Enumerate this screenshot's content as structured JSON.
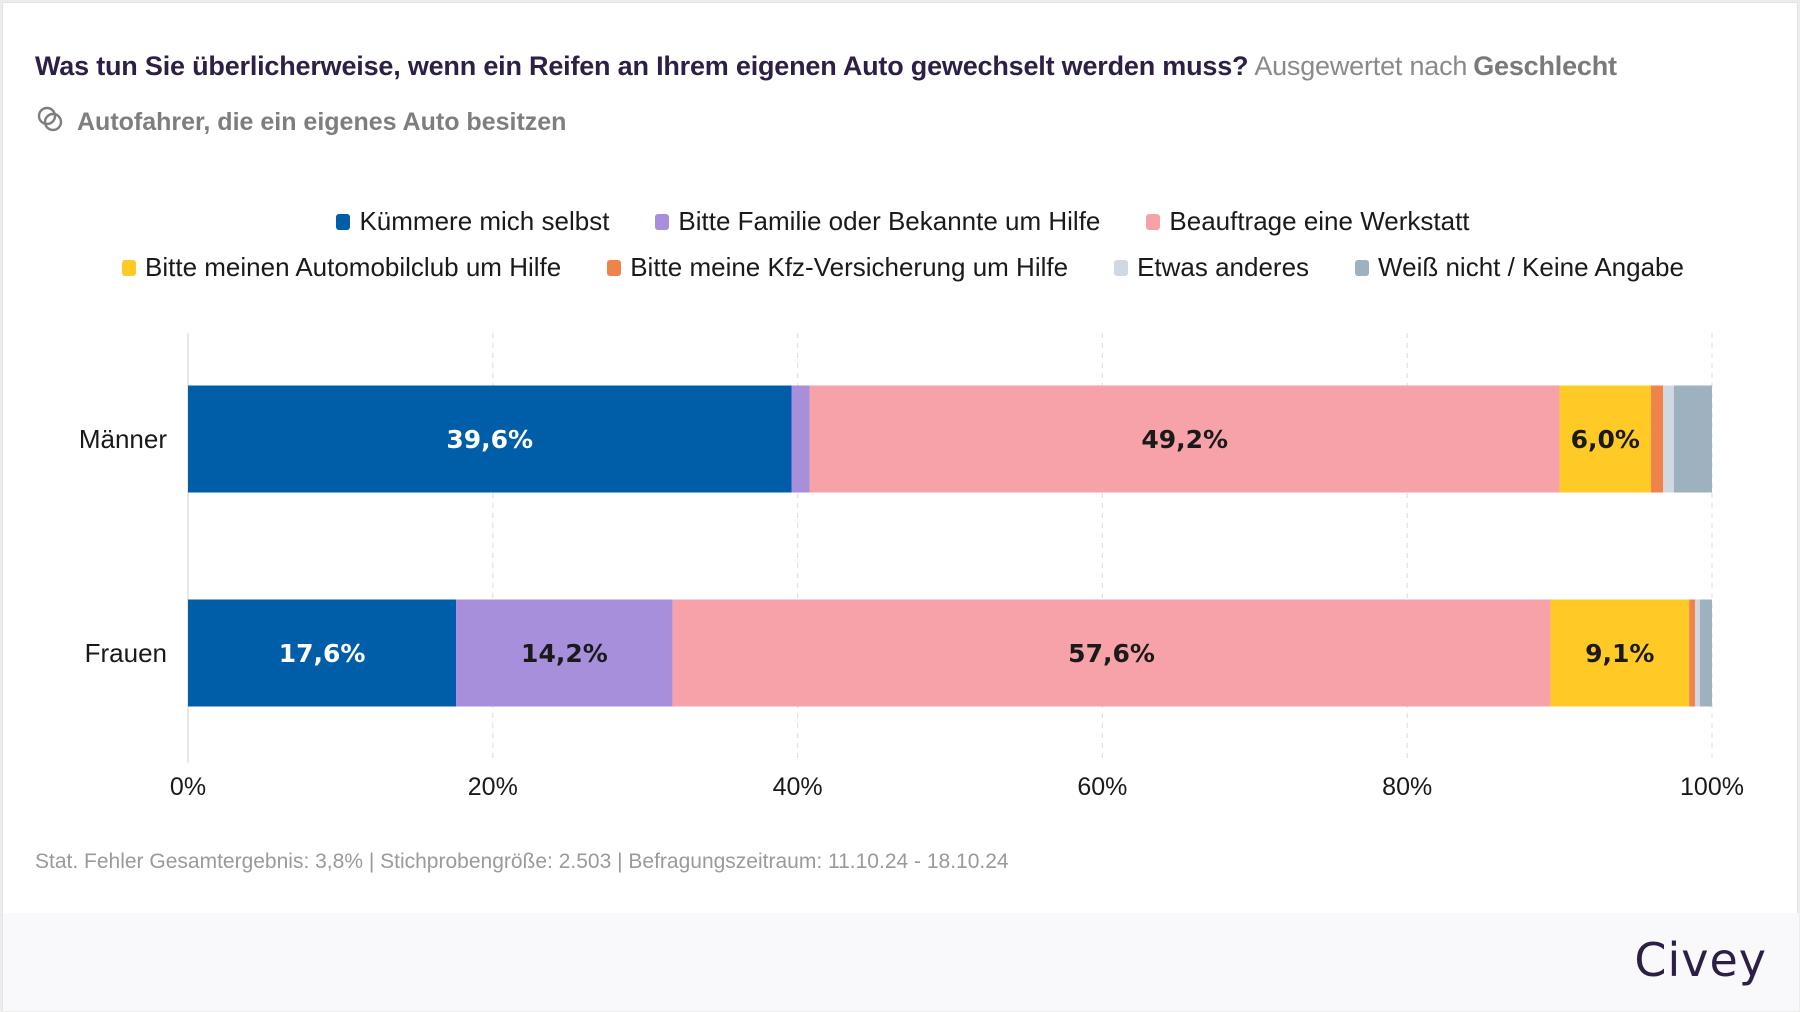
{
  "header": {
    "question": "Was tun Sie überlicherweise, wenn ein Reifen an Ihrem eigenen Auto gewechselt werden muss?",
    "breakdown_prefix": "Ausgewertet nach",
    "breakdown_dimension": "Geschlecht",
    "population_icon": "overlapping-circles-icon",
    "population": "Autofahrer, die ein eigenes Auto besitzen"
  },
  "legend": {
    "row1": [
      {
        "label": "Kümmere mich selbst",
        "color": "#005ea8"
      },
      {
        "label": "Bitte Familie oder Bekannte um Hilfe",
        "color": "#a78fdc"
      },
      {
        "label": "Beauftrage eine Werkstatt",
        "color": "#f7a1a8"
      }
    ],
    "row2": [
      {
        "label": "Bitte meinen Automobilclub um Hilfe",
        "color": "#ffc926"
      },
      {
        "label": "Bitte meine Kfz-Versicherung um Hilfe",
        "color": "#f0834b"
      },
      {
        "label": "Etwas anderes",
        "color": "#d0d9e2"
      },
      {
        "label": "Weiß nicht / Keine Angabe",
        "color": "#9eb1bf"
      }
    ]
  },
  "chart_data": {
    "type": "bar",
    "orientation": "horizontal",
    "stacked": true,
    "title": "Was tun Sie überlicherweise, wenn ein Reifen an Ihrem eigenen Auto gewechselt werden muss?",
    "subtitle": "Ausgewertet nach Geschlecht",
    "categories": [
      "Männer",
      "Frauen"
    ],
    "series": [
      {
        "name": "Kümmere mich selbst",
        "color": "#005ea8",
        "label_color": "#ffffff",
        "values": [
          39.6,
          17.6
        ]
      },
      {
        "name": "Bitte Familie oder Bekannte um Hilfe",
        "color": "#a78fdc",
        "label_color": "#1a1a1a",
        "values": [
          1.2,
          14.2
        ]
      },
      {
        "name": "Beauftrage eine Werkstatt",
        "color": "#f7a1a8",
        "label_color": "#1a1a1a",
        "values": [
          49.2,
          57.6
        ]
      },
      {
        "name": "Bitte meinen Automobilclub um Hilfe",
        "color": "#ffc926",
        "label_color": "#1a1a1a",
        "values": [
          6.0,
          9.1
        ]
      },
      {
        "name": "Bitte meine Kfz-Versicherung um Hilfe",
        "color": "#f0834b",
        "label_color": "#1a1a1a",
        "values": [
          0.8,
          0.4
        ]
      },
      {
        "name": "Etwas anderes",
        "color": "#d0d9e2",
        "label_color": "#1a1a1a",
        "values": [
          0.7,
          0.3
        ]
      },
      {
        "name": "Weiß nicht / Keine Angabe",
        "color": "#9eb1bf",
        "label_color": "#1a1a1a",
        "values": [
          2.5,
          0.8
        ]
      }
    ],
    "data_label_min": 5,
    "xlabel": "",
    "ylabel": "",
    "xlim": [
      0,
      100
    ],
    "xticks": [
      0,
      20,
      40,
      60,
      80,
      100
    ],
    "xtick_labels": [
      "0%",
      "20%",
      "40%",
      "60%",
      "80%",
      "100%"
    ],
    "grid": true,
    "legend_position": "top-center"
  },
  "footer": {
    "note": "Stat. Fehler Gesamtergebnis: 3,8% | Stichprobengröße: 2.503 | Befragungszeitraum: 11.10.24 - 18.10.24",
    "brand": "Civey"
  }
}
